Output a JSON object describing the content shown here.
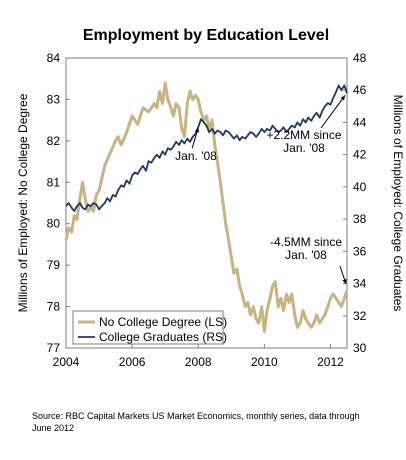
{
  "chart_data": {
    "type": "line",
    "title": "Employment by Education Level",
    "ylabel_left": "Millions of Employed: No College Degree",
    "ylabel_right": "Millions of Employed: College Graduates",
    "ylim_left": [
      77,
      84
    ],
    "ylim_right": [
      30,
      48
    ],
    "xlim": [
      2004,
      2012.5
    ],
    "x_ticks": [
      2004,
      2006,
      2008,
      2010,
      2012
    ],
    "y_ticks_left": [
      77,
      78,
      79,
      80,
      81,
      82,
      83,
      84
    ],
    "y_ticks_right": [
      30,
      32,
      34,
      36,
      38,
      40,
      42,
      44,
      46,
      48
    ],
    "legend_position": "bottom-left",
    "series": [
      {
        "name": "No College Degree (LS)",
        "axis": "left",
        "color": "#c8b483",
        "points": [
          [
            2004.0,
            79.6
          ],
          [
            2004.08,
            79.9
          ],
          [
            2004.17,
            79.8
          ],
          [
            2004.25,
            80.2
          ],
          [
            2004.33,
            80.1
          ],
          [
            2004.42,
            80.6
          ],
          [
            2004.5,
            81.0
          ],
          [
            2004.58,
            80.6
          ],
          [
            2004.67,
            80.3
          ],
          [
            2004.75,
            80.4
          ],
          [
            2004.83,
            80.3
          ],
          [
            2004.92,
            80.7
          ],
          [
            2005.0,
            80.8
          ],
          [
            2005.17,
            81.4
          ],
          [
            2005.33,
            81.7
          ],
          [
            2005.5,
            82.0
          ],
          [
            2005.58,
            82.1
          ],
          [
            2005.67,
            81.9
          ],
          [
            2005.83,
            82.2
          ],
          [
            2006.0,
            82.6
          ],
          [
            2006.17,
            82.4
          ],
          [
            2006.33,
            82.8
          ],
          [
            2006.5,
            82.7
          ],
          [
            2006.67,
            82.9
          ],
          [
            2006.75,
            82.8
          ],
          [
            2006.83,
            83.2
          ],
          [
            2006.92,
            82.9
          ],
          [
            2007.0,
            83.4
          ],
          [
            2007.08,
            83.0
          ],
          [
            2007.17,
            82.8
          ],
          [
            2007.25,
            82.6
          ],
          [
            2007.33,
            82.9
          ],
          [
            2007.42,
            82.8
          ],
          [
            2007.5,
            82.3
          ],
          [
            2007.58,
            82.1
          ],
          [
            2007.67,
            82.9
          ],
          [
            2007.75,
            83.2
          ],
          [
            2007.83,
            83.0
          ],
          [
            2007.92,
            83.1
          ],
          [
            2008.0,
            83.0
          ],
          [
            2008.08,
            82.7
          ],
          [
            2008.17,
            82.5
          ],
          [
            2008.25,
            82.6
          ],
          [
            2008.33,
            82.3
          ],
          [
            2008.42,
            82.5
          ],
          [
            2008.5,
            81.9
          ],
          [
            2008.58,
            81.5
          ],
          [
            2008.67,
            81.0
          ],
          [
            2008.75,
            80.5
          ],
          [
            2008.83,
            80.0
          ],
          [
            2008.92,
            79.6
          ],
          [
            2009.0,
            79.2
          ],
          [
            2009.08,
            78.8
          ],
          [
            2009.17,
            78.9
          ],
          [
            2009.25,
            78.5
          ],
          [
            2009.33,
            78.3
          ],
          [
            2009.42,
            78.0
          ],
          [
            2009.5,
            78.1
          ],
          [
            2009.58,
            77.8
          ],
          [
            2009.67,
            78.0
          ],
          [
            2009.75,
            77.7
          ],
          [
            2009.83,
            77.6
          ],
          [
            2009.92,
            78.0
          ],
          [
            2010.0,
            77.4
          ],
          [
            2010.08,
            77.9
          ],
          [
            2010.17,
            78.2
          ],
          [
            2010.25,
            78.5
          ],
          [
            2010.33,
            78.6
          ],
          [
            2010.42,
            78.0
          ],
          [
            2010.5,
            78.2
          ],
          [
            2010.58,
            77.9
          ],
          [
            2010.67,
            78.3
          ],
          [
            2010.75,
            78.1
          ],
          [
            2010.83,
            78.3
          ],
          [
            2010.92,
            77.8
          ],
          [
            2011.0,
            77.5
          ],
          [
            2011.08,
            77.6
          ],
          [
            2011.17,
            77.9
          ],
          [
            2011.25,
            77.7
          ],
          [
            2011.33,
            77.6
          ],
          [
            2011.42,
            77.5
          ],
          [
            2011.5,
            77.6
          ],
          [
            2011.58,
            77.8
          ],
          [
            2011.67,
            77.6
          ],
          [
            2011.75,
            77.7
          ],
          [
            2011.83,
            77.8
          ],
          [
            2011.92,
            78.0
          ],
          [
            2012.0,
            78.2
          ],
          [
            2012.08,
            78.3
          ],
          [
            2012.17,
            78.2
          ],
          [
            2012.25,
            78.1
          ],
          [
            2012.33,
            78.0
          ],
          [
            2012.42,
            78.2
          ],
          [
            2012.5,
            78.4
          ]
        ]
      },
      {
        "name": "College Graduates (RS)",
        "axis": "right",
        "color": "#1f3864",
        "points": [
          [
            2004.0,
            38.8
          ],
          [
            2004.08,
            39.0
          ],
          [
            2004.17,
            38.7
          ],
          [
            2004.25,
            38.5
          ],
          [
            2004.33,
            38.8
          ],
          [
            2004.42,
            39.0
          ],
          [
            2004.5,
            38.7
          ],
          [
            2004.58,
            38.6
          ],
          [
            2004.67,
            38.9
          ],
          [
            2004.75,
            38.8
          ],
          [
            2004.83,
            39.0
          ],
          [
            2004.92,
            38.9
          ],
          [
            2005.0,
            38.6
          ],
          [
            2005.08,
            38.8
          ],
          [
            2005.17,
            39.0
          ],
          [
            2005.25,
            39.3
          ],
          [
            2005.33,
            39.1
          ],
          [
            2005.42,
            39.5
          ],
          [
            2005.5,
            39.4
          ],
          [
            2005.58,
            39.8
          ],
          [
            2005.67,
            40.1
          ],
          [
            2005.75,
            40.0
          ],
          [
            2005.83,
            40.4
          ],
          [
            2005.92,
            40.2
          ],
          [
            2006.0,
            40.7
          ],
          [
            2006.08,
            40.9
          ],
          [
            2006.17,
            40.8
          ],
          [
            2006.25,
            41.1
          ],
          [
            2006.33,
            41.3
          ],
          [
            2006.42,
            41.0
          ],
          [
            2006.5,
            41.6
          ],
          [
            2006.58,
            41.5
          ],
          [
            2006.67,
            41.8
          ],
          [
            2006.75,
            42.0
          ],
          [
            2006.83,
            41.8
          ],
          [
            2006.92,
            42.2
          ],
          [
            2007.0,
            42.0
          ],
          [
            2007.08,
            42.4
          ],
          [
            2007.17,
            42.3
          ],
          [
            2007.25,
            42.5
          ],
          [
            2007.33,
            42.8
          ],
          [
            2007.42,
            42.6
          ],
          [
            2007.5,
            42.9
          ],
          [
            2007.58,
            42.7
          ],
          [
            2007.67,
            43.0
          ],
          [
            2007.75,
            42.8
          ],
          [
            2007.83,
            43.1
          ],
          [
            2007.92,
            43.3
          ],
          [
            2008.0,
            43.7
          ],
          [
            2008.08,
            44.2
          ],
          [
            2008.17,
            44.0
          ],
          [
            2008.25,
            43.8
          ],
          [
            2008.33,
            43.4
          ],
          [
            2008.42,
            43.6
          ],
          [
            2008.5,
            43.3
          ],
          [
            2008.58,
            43.5
          ],
          [
            2008.67,
            43.4
          ],
          [
            2008.75,
            43.2
          ],
          [
            2008.83,
            43.5
          ],
          [
            2008.92,
            43.4
          ],
          [
            2009.0,
            43.2
          ],
          [
            2009.08,
            43.0
          ],
          [
            2009.17,
            43.2
          ],
          [
            2009.25,
            42.9
          ],
          [
            2009.33,
            43.1
          ],
          [
            2009.42,
            43.0
          ],
          [
            2009.5,
            43.2
          ],
          [
            2009.58,
            43.4
          ],
          [
            2009.67,
            43.3
          ],
          [
            2009.75,
            43.1
          ],
          [
            2009.83,
            43.3
          ],
          [
            2009.92,
            43.6
          ],
          [
            2010.0,
            43.4
          ],
          [
            2010.08,
            43.6
          ],
          [
            2010.17,
            43.5
          ],
          [
            2010.25,
            43.8
          ],
          [
            2010.33,
            43.6
          ],
          [
            2010.42,
            43.4
          ],
          [
            2010.5,
            43.5
          ],
          [
            2010.58,
            43.7
          ],
          [
            2010.67,
            43.4
          ],
          [
            2010.75,
            43.6
          ],
          [
            2010.83,
            43.8
          ],
          [
            2010.92,
            43.7
          ],
          [
            2011.0,
            44.0
          ],
          [
            2011.08,
            43.8
          ],
          [
            2011.17,
            44.2
          ],
          [
            2011.25,
            44.0
          ],
          [
            2011.33,
            44.3
          ],
          [
            2011.42,
            44.1
          ],
          [
            2011.5,
            44.4
          ],
          [
            2011.58,
            44.6
          ],
          [
            2011.67,
            44.3
          ],
          [
            2011.75,
            44.7
          ],
          [
            2011.83,
            45.0
          ],
          [
            2011.92,
            45.2
          ],
          [
            2012.0,
            45.1
          ],
          [
            2012.08,
            45.5
          ],
          [
            2012.17,
            45.9
          ],
          [
            2012.25,
            46.3
          ],
          [
            2012.33,
            46.0
          ],
          [
            2012.42,
            46.3
          ],
          [
            2012.5,
            45.8
          ]
        ]
      }
    ],
    "annotations": [
      {
        "text": "Jan. '08",
        "axis": "right",
        "x": 2008.0,
        "y": 43.8
      },
      {
        "lines": [
          "+2.2MM since",
          "Jan. '08"
        ],
        "axis": "right",
        "x": 2012.5,
        "y": 45.8
      },
      {
        "lines": [
          "-4.5MM since",
          "Jan. '08"
        ],
        "axis": "left",
        "x": 2012.5,
        "y": 78.4
      }
    ]
  },
  "source_note": "Source: RBC Capital Markets US Market Economics, monthly series, data through June 2012"
}
